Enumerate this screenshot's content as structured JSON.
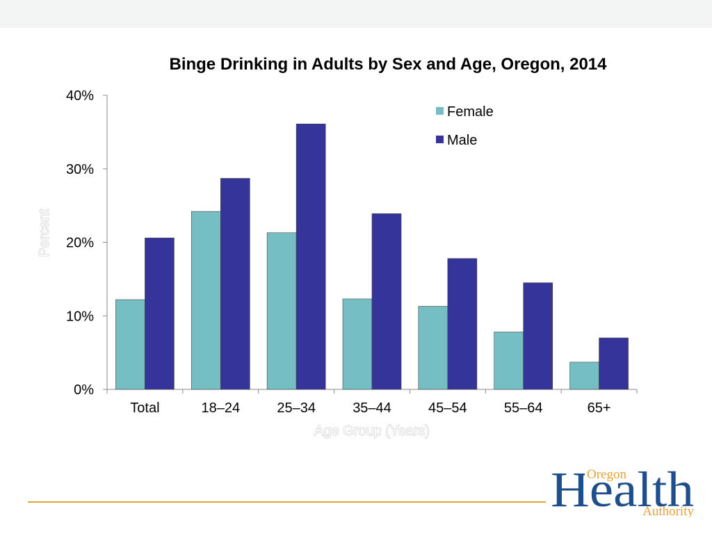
{
  "chart_data": {
    "type": "bar",
    "title": "Binge Drinking in Adults by Sex and Age, Oregon, 2014",
    "xlabel": "Age Group (Years)",
    "ylabel": "Percent",
    "categories": [
      "Total",
      "18–24",
      "25–34",
      "35–44",
      "45–54",
      "55–64",
      "65+"
    ],
    "series": [
      {
        "name": "Female",
        "color": "#75bfc4",
        "values": [
          12.2,
          24.2,
          21.3,
          12.3,
          11.3,
          7.8,
          3.7
        ]
      },
      {
        "name": "Male",
        "color": "#35349a",
        "values": [
          20.6,
          28.7,
          36.1,
          23.9,
          17.8,
          14.5,
          7.0
        ]
      }
    ],
    "ylim": [
      0,
      40
    ],
    "yticks": [
      0,
      10,
      20,
      30,
      40
    ],
    "ytick_labels": [
      "0%",
      "10%",
      "20%",
      "30%",
      "40%"
    ],
    "grid": false,
    "legend_position": "top-right"
  },
  "logo": {
    "top_word": "Oregon",
    "big_word": "Health",
    "bottom_word": "Authority"
  }
}
